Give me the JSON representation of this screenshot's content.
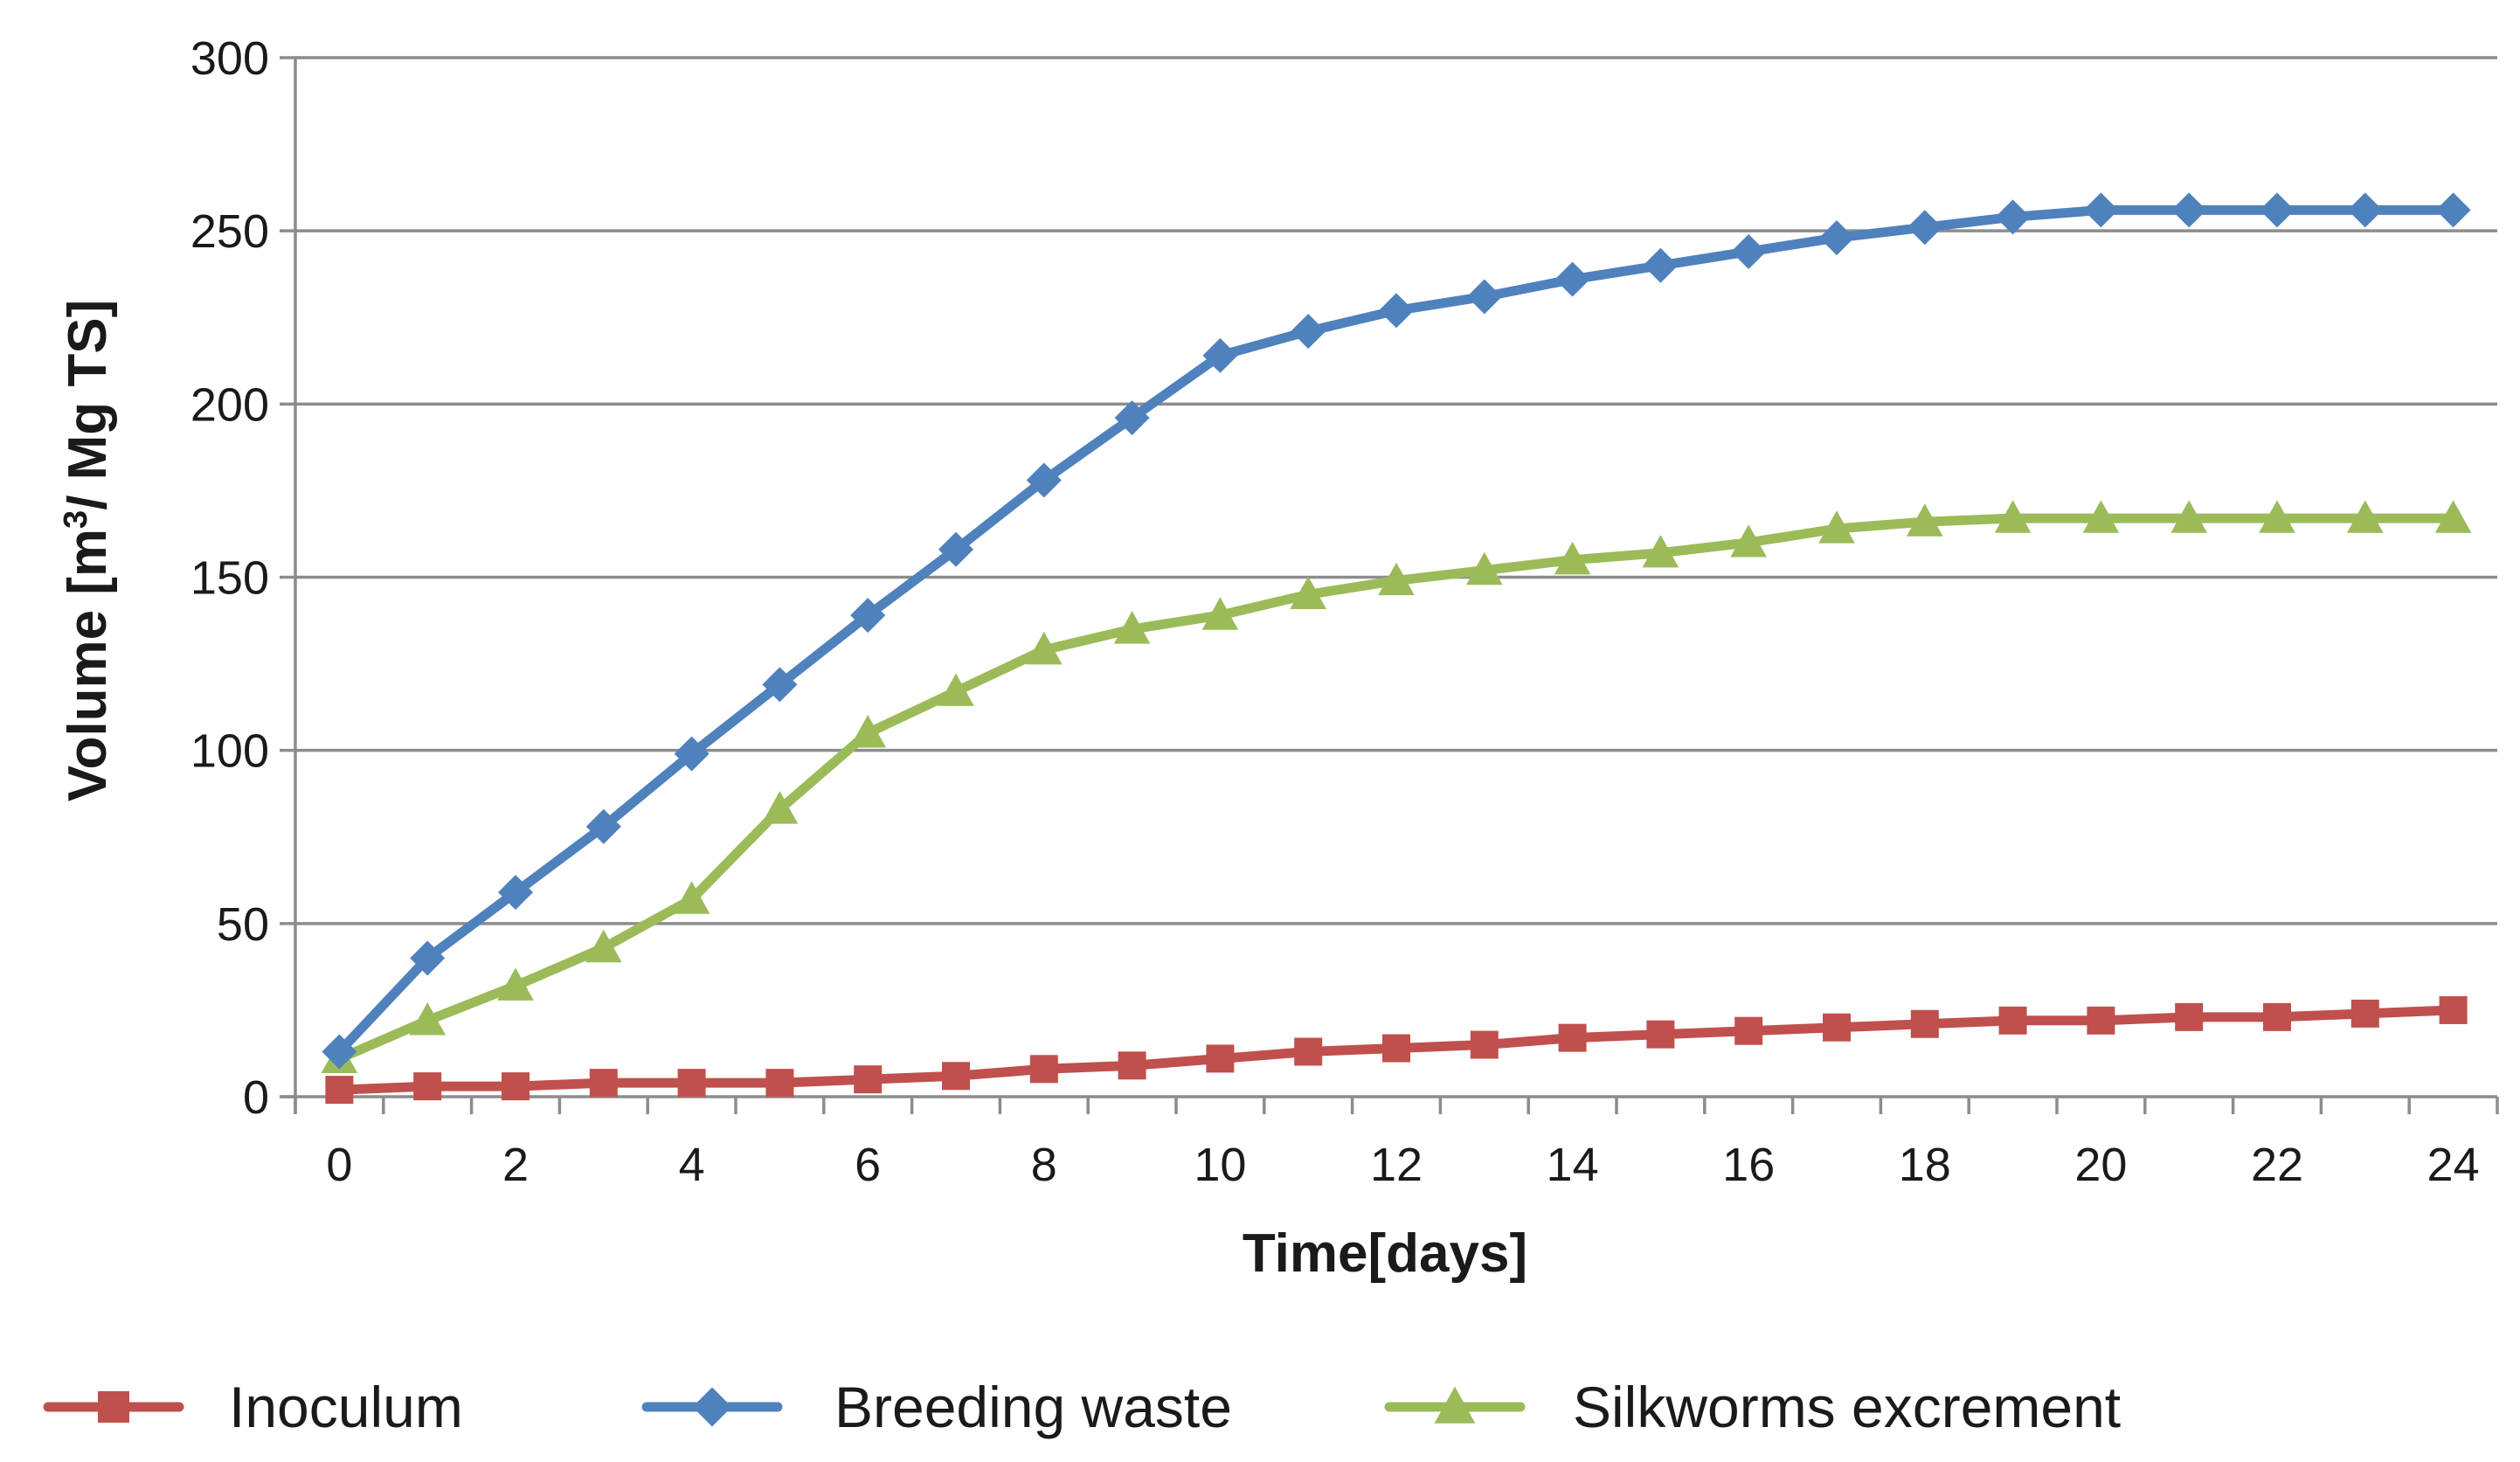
{
  "chart_data": {
    "type": "line",
    "title": "",
    "xlabel": "Time[days]",
    "ylabel_parts": {
      "before": "Volume [m",
      "sup": "3",
      "after": "/ Mg TS]"
    },
    "xlim": [
      -0.5,
      24.5
    ],
    "ylim": [
      0,
      300
    ],
    "x_ticks": [
      "0",
      "2",
      "4",
      "6",
      "8",
      "10",
      "12",
      "14",
      "16",
      "18",
      "20",
      "22",
      "24"
    ],
    "y_ticks": [
      "0",
      "50",
      "100",
      "150",
      "200",
      "250",
      "300"
    ],
    "grid": true,
    "legend_position": "bottom",
    "x": [
      0,
      1,
      2,
      3,
      4,
      5,
      6,
      7,
      8,
      9,
      10,
      11,
      12,
      13,
      14,
      15,
      16,
      17,
      18,
      19,
      20,
      21,
      22,
      23,
      24
    ],
    "series": [
      {
        "name": "Inoculum",
        "color": "#c0504d",
        "marker": "square",
        "values": [
          2,
          3,
          3,
          4,
          4,
          4,
          5,
          6,
          8,
          9,
          11,
          13,
          14,
          15,
          17,
          18,
          19,
          20,
          21,
          22,
          22,
          23,
          23,
          24,
          25
        ]
      },
      {
        "name": "Breeding waste",
        "color": "#4f81bd",
        "marker": "diamond",
        "values": [
          13,
          40,
          59,
          78,
          99,
          119,
          139,
          158,
          178,
          196,
          214,
          221,
          227,
          231,
          236,
          240,
          244,
          248,
          251,
          254,
          256,
          256,
          256,
          256,
          256
        ]
      },
      {
        "name": "Silkworms excrement",
        "color": "#9bbb59",
        "marker": "triangle",
        "values": [
          11,
          22,
          32,
          43,
          57,
          83,
          105,
          117,
          129,
          135,
          139,
          145,
          149,
          152,
          155,
          157,
          160,
          164,
          166,
          167,
          167,
          167,
          167,
          167,
          167
        ]
      }
    ]
  }
}
